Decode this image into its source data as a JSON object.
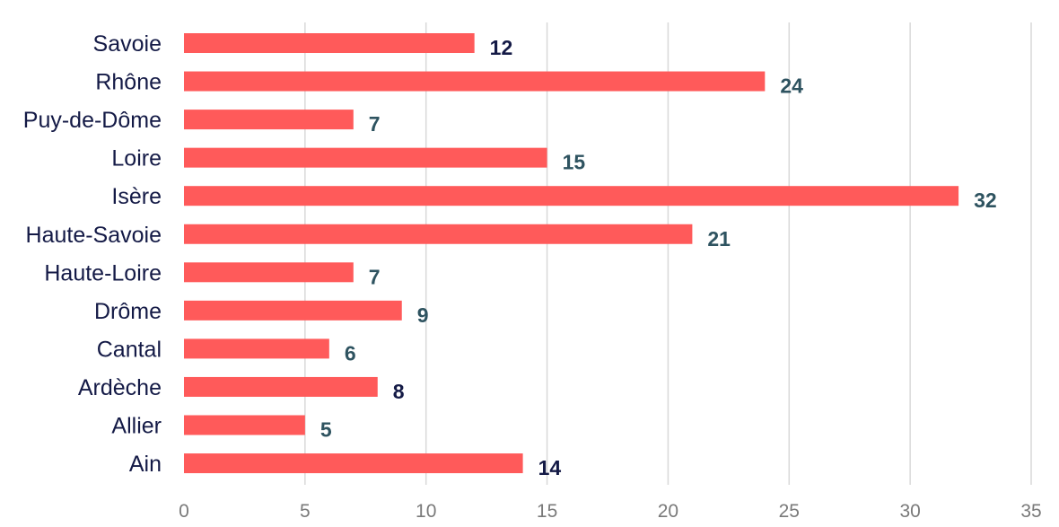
{
  "chart_data": {
    "type": "bar",
    "orientation": "horizontal",
    "title": "",
    "xlabel": "",
    "ylabel": "",
    "categories": [
      "Savoie",
      "Rhône",
      "Puy-de-Dôme",
      "Loire",
      "Isère",
      "Haute-Savoie",
      "Haute-Loire",
      "Drôme",
      "Cantal",
      "Ardèche",
      "Allier",
      "Ain"
    ],
    "values": [
      12,
      24,
      7,
      15,
      32,
      21,
      7,
      9,
      6,
      8,
      5,
      14
    ],
    "value_labels": [
      "12",
      "24",
      "7",
      "15",
      "32",
      "21",
      "7",
      "9",
      "6",
      "8",
      "5",
      "14"
    ],
    "xlim": [
      0,
      35
    ],
    "xticks": [
      0,
      5,
      10,
      15,
      20,
      25,
      30,
      35
    ],
    "xtick_labels": [
      "0",
      "5",
      "10",
      "15",
      "20",
      "25",
      "30",
      "35"
    ],
    "grid": "vertical",
    "legend": "none",
    "colors": {
      "bar": "#ff5a5a",
      "category_text": "#141a46",
      "tick_text": "#7a7a7a",
      "gridline": "#d9d9d9",
      "value_label_dark": "#141a46",
      "value_label_slate": "#2e5360"
    },
    "value_label_color_keys": [
      "value_label_dark",
      "value_label_slate",
      "value_label_slate",
      "value_label_slate",
      "value_label_slate",
      "value_label_slate",
      "value_label_slate",
      "value_label_slate",
      "value_label_slate",
      "value_label_dark",
      "value_label_slate",
      "value_label_dark"
    ]
  }
}
